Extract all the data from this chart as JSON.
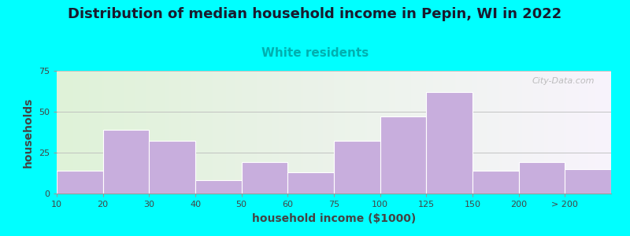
{
  "title": "Distribution of median household income in Pepin, WI in 2022",
  "subtitle": "White residents",
  "xlabel": "household income ($1000)",
  "ylabel": "households",
  "title_fontsize": 13,
  "subtitle_fontsize": 11,
  "subtitle_color": "#00b0b0",
  "bar_color": "#c8aedd",
  "bar_edgecolor": "#ffffff",
  "background_color": "#00ffff",
  "ylim": [
    0,
    75
  ],
  "yticks": [
    0,
    25,
    50,
    75
  ],
  "tick_labels": [
    "10",
    "20",
    "30",
    "40",
    "50",
    "60",
    "75",
    "100",
    "125",
    "150",
    "200",
    "> 200"
  ],
  "values": [
    14,
    39,
    32,
    8,
    19,
    13,
    32,
    47,
    62,
    14,
    19,
    15
  ],
  "watermark": "City-Data.com",
  "grid_color": "#bbbbbb",
  "bar_left_edges": [
    0,
    1,
    2,
    3,
    4,
    5,
    6,
    7,
    8,
    9,
    10,
    11
  ],
  "bar_widths_norm": [
    1,
    1,
    1,
    1,
    1,
    1,
    1,
    1,
    1,
    1,
    1,
    1
  ]
}
